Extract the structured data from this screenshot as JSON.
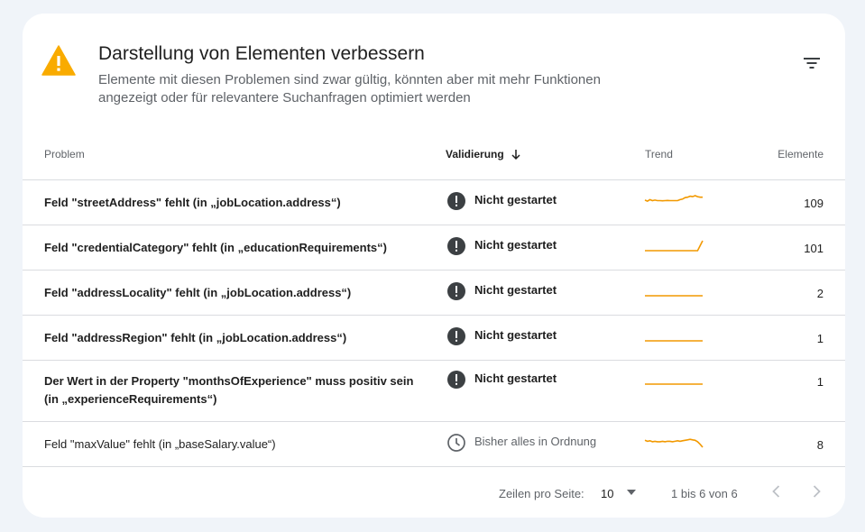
{
  "panel": {
    "title": "Darstellung von Elementen verbessern",
    "subtitle": "Elemente mit diesen Problemen sind zwar gültig, könnten aber mit mehr Funktionen angezeigt oder für relevantere Suchanfragen optimiert werden",
    "icon": "warning-icon",
    "accent_color": "#f9ab00"
  },
  "table": {
    "headers": {
      "problem": "Problem",
      "validation": "Validierung",
      "trend": "Trend",
      "elements": "Elemente"
    },
    "rows": [
      {
        "problem": "Feld \"streetAddress\" fehlt (in „jobLocation.address“)",
        "validation": "Nicht gestartet",
        "status": "not-started",
        "count": "109",
        "trend": [
          0.55,
          0.45,
          0.6,
          0.5,
          0.55,
          0.5,
          0.5,
          0.48,
          0.5,
          0.52,
          0.5,
          0.5,
          0.5,
          0.5,
          0.6,
          0.65,
          0.8,
          0.85,
          0.95,
          0.9,
          1.0,
          0.9,
          0.85,
          0.85
        ]
      },
      {
        "problem": "Feld \"credentialCategory\" fehlt (in „educationRequirements“)",
        "validation": "Nicht gestartet",
        "status": "not-started",
        "count": "101",
        "trend": [
          0.0,
          0.0,
          0.0,
          0.0,
          0.0,
          0.0,
          0.0,
          0.0,
          0.0,
          0.0,
          0.0,
          0.0,
          0.0,
          0.0,
          0.0,
          0.0,
          0.0,
          0.0,
          0.0,
          0.0,
          0.0,
          0.0,
          0.5,
          1.0
        ]
      },
      {
        "problem": "Feld \"addressLocality\" fehlt (in „jobLocation.address“)",
        "validation": "Nicht gestartet",
        "status": "not-started",
        "count": "2",
        "trend": [
          0.0,
          0.0,
          0.0,
          0.0,
          0.0,
          0.0,
          0.0,
          0.0,
          0.0,
          0.0,
          0.0,
          0.0
        ]
      },
      {
        "problem": "Feld \"addressRegion\" fehlt (in „jobLocation.address“)",
        "validation": "Nicht gestartet",
        "status": "not-started",
        "count": "1",
        "trend": [
          0.0,
          0.0,
          0.0,
          0.0,
          0.0,
          0.0,
          0.0,
          0.0,
          0.0,
          0.0,
          0.0,
          0.0
        ]
      },
      {
        "problem": "Der Wert in der Property \"monthsOfExperience\" muss positiv sein (in „experienceRequirements“)",
        "validation": "Nicht gestartet",
        "status": "not-started",
        "count": "1",
        "trend": [
          0.0,
          0.0,
          0.0,
          0.0,
          0.0,
          0.0,
          0.0,
          0.0,
          0.0,
          0.0,
          0.0,
          0.0
        ]
      },
      {
        "problem": "Feld \"maxValue\" fehlt (in „baseSalary.value“)",
        "validation": "Bisher alles in Ordnung",
        "status": "ok",
        "count": "8",
        "trend": [
          0.7,
          0.6,
          0.65,
          0.55,
          0.6,
          0.55,
          0.55,
          0.6,
          0.55,
          0.6,
          0.6,
          0.55,
          0.6,
          0.65,
          0.6,
          0.65,
          0.7,
          0.75,
          0.8,
          0.75,
          0.7,
          0.55,
          0.3,
          0.0
        ]
      }
    ]
  },
  "pagination": {
    "rows_per_page_label": "Zeilen pro Seite:",
    "rows_per_page_value": "10",
    "range": "1 bis 6 von 6"
  },
  "colors": {
    "trend_line": "#f29900",
    "status_icon": "#3c4043",
    "ok_icon": "#5f6368",
    "divider": "#dadce0"
  }
}
